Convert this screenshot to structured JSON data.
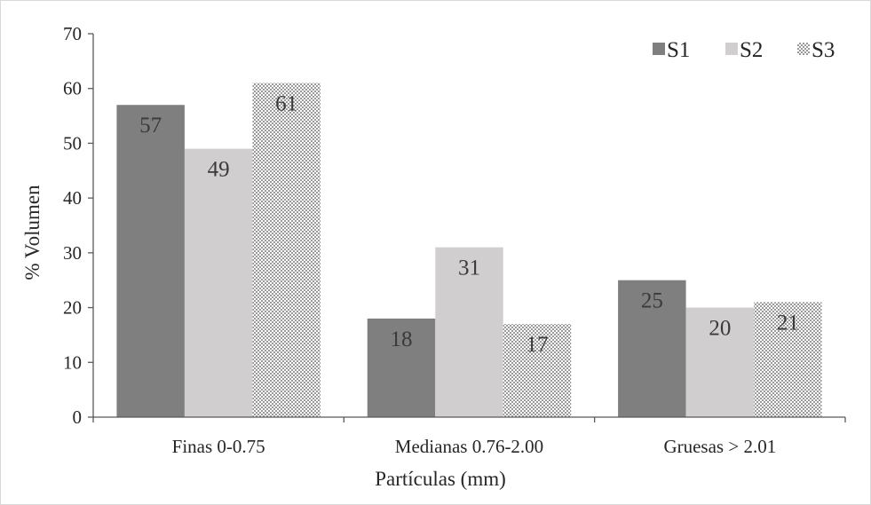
{
  "chart_data": {
    "type": "bar",
    "categories": [
      "Finas 0-0.75",
      "Medianas 0.76-2.00",
      "Gruesas > 2.01"
    ],
    "series": [
      {
        "name": "S1",
        "values": [
          57,
          18,
          25
        ],
        "color": "#7f7f7f",
        "fill": "solid"
      },
      {
        "name": "S2",
        "values": [
          49,
          31,
          20
        ],
        "color": "#d0cece",
        "fill": "solid"
      },
      {
        "name": "S3",
        "values": [
          61,
          17,
          21
        ],
        "color": "#a6a6a6",
        "fill": "checker"
      }
    ],
    "data_labels": [
      [
        "57",
        "18",
        "25"
      ],
      [
        "49",
        "31",
        "20"
      ],
      [
        "61",
        "17",
        "21"
      ]
    ],
    "title": "",
    "xlabel": "Partículas (mm)",
    "ylabel": "% Volumen",
    "ylim": [
      0,
      70
    ],
    "yticks": [
      0,
      10,
      20,
      30,
      40,
      50,
      60,
      70
    ],
    "ytick_labels": [
      "0",
      "10",
      "20",
      "30",
      "40",
      "50",
      "60",
      "70"
    ],
    "grid": false,
    "legend_position": "top-right"
  }
}
